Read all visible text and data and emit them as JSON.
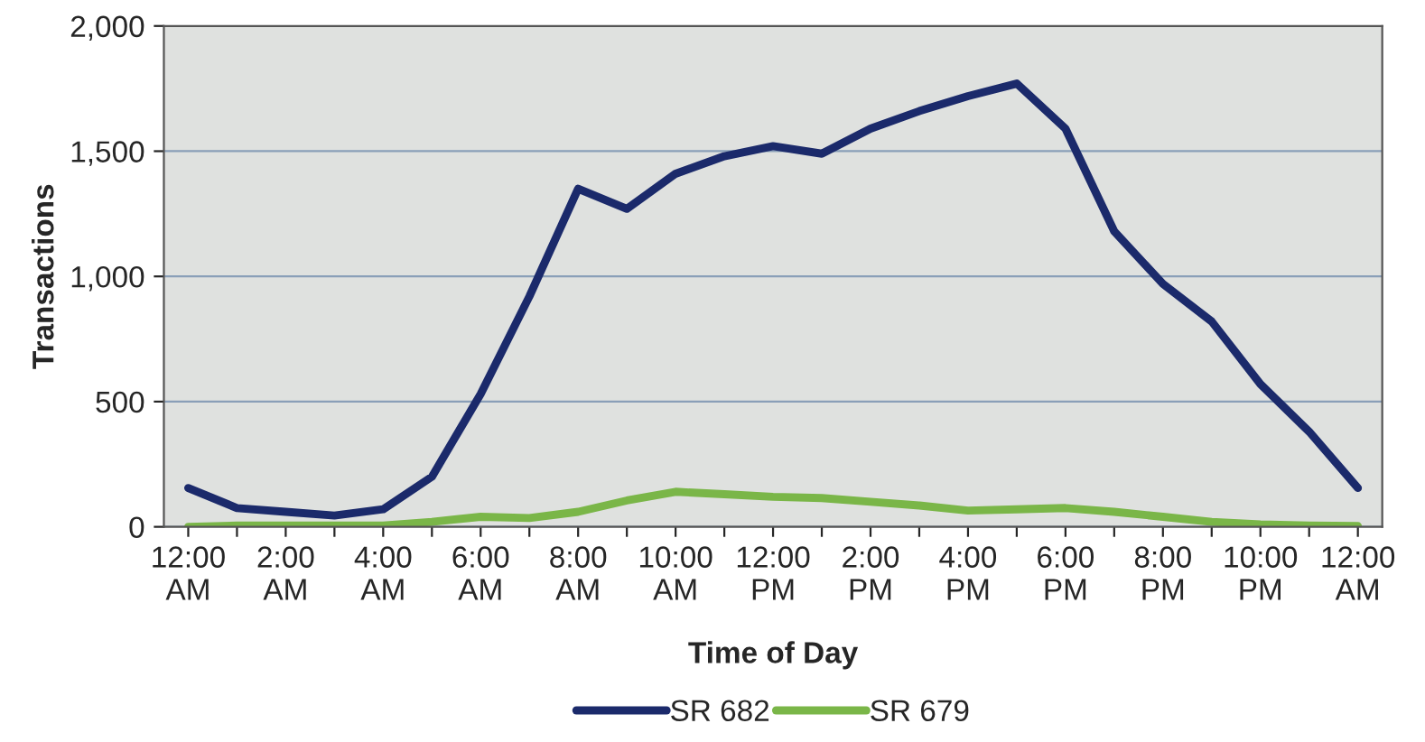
{
  "chart_data": {
    "type": "line",
    "xlabel": "Time of Day",
    "ylabel": "Transactions",
    "categories": [
      "12:00\nAM",
      null,
      "2:00\nAM",
      null,
      "4:00\nAM",
      null,
      "6:00\nAM",
      null,
      "8:00\nAM",
      null,
      "10:00\nAM",
      null,
      "12:00\nPM",
      null,
      "2:00\nPM",
      null,
      "4:00\nPM",
      null,
      "6:00\nPM",
      null,
      "8:00\nPM",
      null,
      "10:00\nPM",
      null,
      "12:00\nAM"
    ],
    "series": [
      {
        "name": "SR 682",
        "color": "#1b2a6b",
        "values": [
          155,
          75,
          60,
          45,
          70,
          200,
          530,
          920,
          1350,
          1270,
          1410,
          1480,
          1520,
          1490,
          1590,
          1660,
          1720,
          1770,
          1590,
          1180,
          970,
          820,
          570,
          380,
          155
        ]
      },
      {
        "name": "SR 679",
        "color": "#7ab648",
        "values": [
          0,
          5,
          5,
          5,
          5,
          20,
          40,
          35,
          60,
          105,
          140,
          130,
          120,
          115,
          100,
          85,
          65,
          70,
          75,
          60,
          40,
          20,
          10,
          5,
          3
        ]
      }
    ],
    "ylim": [
      0,
      2000
    ],
    "yticks": [
      {
        "value": 0,
        "label": "0"
      },
      {
        "value": 500,
        "label": "500"
      },
      {
        "value": 1000,
        "label": "1,000"
      },
      {
        "value": 1500,
        "label": "1,500"
      },
      {
        "value": 2000,
        "label": "2,000"
      }
    ],
    "grid": "y",
    "legend": "bottom",
    "marker": "none",
    "line_style": "solid"
  }
}
